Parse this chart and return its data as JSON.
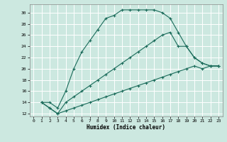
{
  "xlabel": "Humidex (Indice chaleur)",
  "bg_color": "#cce8e0",
  "grid_color": "#ffffff",
  "line_color": "#1a6b5a",
  "xlim": [
    -0.5,
    23.5
  ],
  "ylim": [
    11.5,
    31.5
  ],
  "xticks": [
    0,
    1,
    2,
    3,
    4,
    5,
    6,
    7,
    8,
    9,
    10,
    11,
    12,
    13,
    14,
    15,
    16,
    17,
    18,
    19,
    20,
    21,
    22,
    23
  ],
  "yticks": [
    12,
    14,
    16,
    18,
    20,
    22,
    24,
    26,
    28,
    30
  ],
  "line1_x": [
    1,
    2,
    3,
    4,
    5,
    6,
    7,
    8,
    9,
    10,
    11,
    12,
    13,
    14,
    15,
    16,
    17,
    18,
    19,
    20,
    21,
    22,
    23
  ],
  "line1_y": [
    14,
    14,
    13,
    16,
    20,
    23,
    25,
    27,
    29,
    29.5,
    30.5,
    30.5,
    30.5,
    30.5,
    30.5,
    30,
    29,
    26.5,
    24,
    22,
    21,
    20.5,
    20.5
  ],
  "line2_x": [
    1,
    2,
    3,
    4,
    5,
    6,
    7,
    8,
    9,
    10,
    11,
    12,
    13,
    14,
    15,
    16,
    17,
    18,
    19,
    20,
    21,
    22,
    23
  ],
  "line2_y": [
    14,
    13,
    12,
    14,
    15,
    16,
    17,
    18,
    19,
    20,
    21,
    22,
    23,
    24,
    25,
    26,
    26.5,
    24,
    24,
    22,
    21,
    20.5,
    20.5
  ],
  "line3_x": [
    1,
    2,
    3,
    4,
    5,
    6,
    7,
    8,
    9,
    10,
    11,
    12,
    13,
    14,
    15,
    16,
    17,
    18,
    19,
    20,
    21,
    22,
    23
  ],
  "line3_y": [
    14,
    13,
    12,
    12.5,
    13,
    13.5,
    14,
    14.5,
    15,
    15.5,
    16,
    16.5,
    17,
    17.5,
    18,
    18.5,
    19,
    19.5,
    20,
    20.5,
    20,
    20.5,
    20.5
  ]
}
